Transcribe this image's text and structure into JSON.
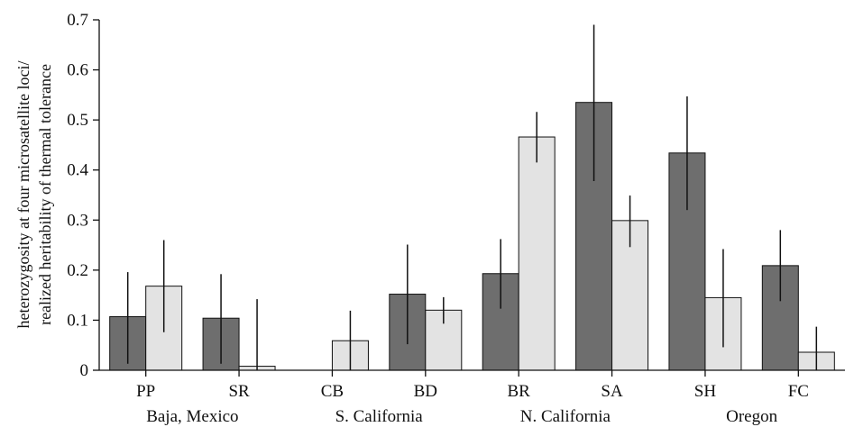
{
  "chart_data": {
    "type": "bar",
    "ylabel_lines": [
      "heterozygosity at four microsatellite loci/",
      "realized heritability of thermal tolerance"
    ],
    "ylim": [
      0,
      0.7
    ],
    "yticks": [
      "0",
      "0.1",
      "0.2",
      "0.3",
      "0.4",
      "0.5",
      "0.6",
      "0.7"
    ],
    "ytick_values": [
      0,
      0.1,
      0.2,
      0.3,
      0.4,
      0.5,
      0.6,
      0.7
    ],
    "categories": [
      "PP",
      "SR",
      "CB",
      "BD",
      "BR",
      "SA",
      "SH",
      "FC"
    ],
    "groups": [
      {
        "label": "Baja, Mexico",
        "categories": [
          "PP",
          "SR"
        ]
      },
      {
        "label": "S. California",
        "categories": [
          "CB",
          "BD"
        ]
      },
      {
        "label": "N. California",
        "categories": [
          "BR",
          "SA"
        ]
      },
      {
        "label": "Oregon",
        "categories": [
          "SH",
          "FC"
        ]
      }
    ],
    "series": [
      {
        "values": [
          0.107,
          0.104,
          null,
          0.152,
          0.193,
          0.535,
          0.434,
          0.209
        ],
        "err_low": [
          0.013,
          0.013,
          null,
          0.052,
          0.123,
          0.378,
          0.32,
          0.138
        ],
        "err_high": [
          0.196,
          0.192,
          null,
          0.251,
          0.262,
          0.69,
          0.547,
          0.28
        ],
        "color": "#6e6e6e"
      },
      {
        "values": [
          0.168,
          0.008,
          0.059,
          0.12,
          0.466,
          0.299,
          0.145,
          0.036
        ],
        "err_low": [
          0.076,
          0.0,
          0.0,
          0.093,
          0.415,
          0.246,
          0.046,
          0.0
        ],
        "err_high": [
          0.26,
          0.142,
          0.119,
          0.146,
          0.516,
          0.349,
          0.242,
          0.087
        ],
        "color": "#e3e3e3"
      }
    ],
    "grid": false,
    "legend": "none"
  }
}
